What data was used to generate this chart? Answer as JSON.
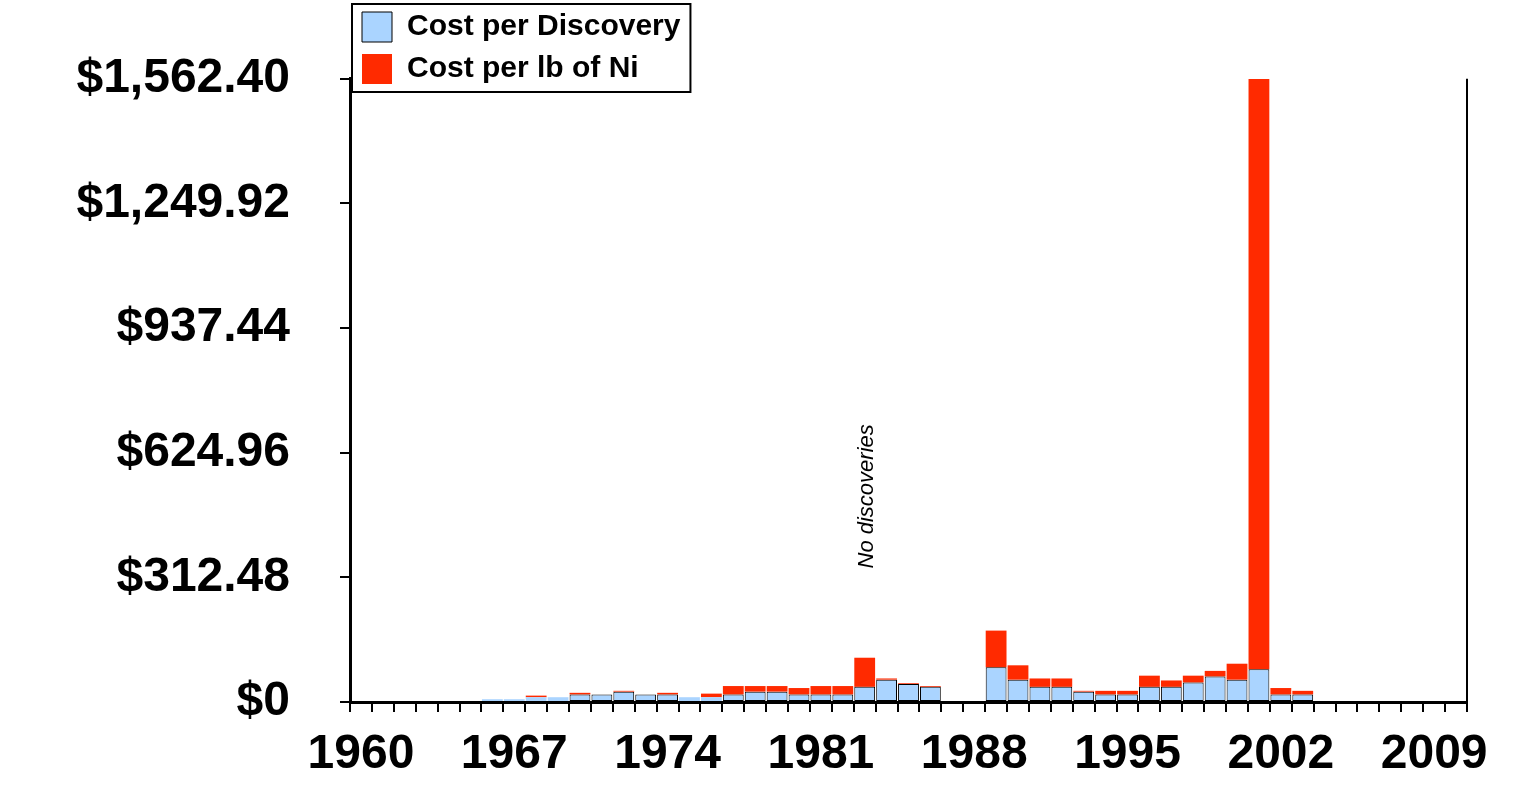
{
  "chart_data": {
    "type": "bar",
    "categories": [
      "1960",
      null,
      null,
      null,
      null,
      null,
      null,
      "1967",
      null,
      null,
      null,
      null,
      null,
      null,
      "1974",
      null,
      null,
      null,
      null,
      null,
      null,
      "1981",
      null,
      null,
      null,
      null,
      null,
      null,
      "1988",
      null,
      null,
      null,
      null,
      null,
      null,
      "1995",
      null,
      null,
      null,
      null,
      null,
      null,
      "2002",
      null,
      null,
      null,
      null,
      null,
      null,
      "2009",
      null
    ],
    "series": [
      {
        "name": "Cost per Discovery",
        "color": "#aad4ff",
        "values": [
          null,
          null,
          null,
          null,
          null,
          null,
          7,
          7,
          12,
          12,
          19,
          19,
          26,
          19,
          19,
          12,
          12,
          19,
          26,
          26,
          19,
          19,
          19,
          38,
          56,
          45,
          38,
          null,
          null,
          87,
          56,
          38,
          38,
          26,
          19,
          19,
          38,
          38,
          49,
          64,
          56,
          82,
          19,
          19,
          null,
          null,
          null,
          null,
          null,
          null,
          null
        ]
      },
      {
        "name": "Cost per lb of Ni",
        "color": "#ff2a00",
        "values": [
          null,
          null,
          null,
          null,
          null,
          null,
          null,
          null,
          4,
          null,
          4,
          null,
          2,
          null,
          4,
          null,
          9,
          21,
          14,
          14,
          16,
          21,
          21,
          73,
          3,
          2,
          2,
          null,
          null,
          92,
          36,
          21,
          21,
          2,
          9,
          9,
          28,
          16,
          17,
          14,
          40,
          1480,
          16,
          9,
          null,
          null,
          null,
          null,
          null,
          null,
          null
        ]
      }
    ],
    "stacked": true,
    "ylim": [
      0,
      1562.4
    ],
    "yticks": [
      {
        "value": 0,
        "label": "$0"
      },
      {
        "value": 312.48,
        "label": "$312.48"
      },
      {
        "value": 624.96,
        "label": "$624.96"
      },
      {
        "value": 937.44,
        "label": "$937.44"
      },
      {
        "value": 1249.92,
        "label": "$1,249.92"
      },
      {
        "value": 1562.4,
        "label": "$1,562.40"
      }
    ],
    "grid": false,
    "legend": "top left",
    "annotations": [
      "No discoveries"
    ]
  }
}
